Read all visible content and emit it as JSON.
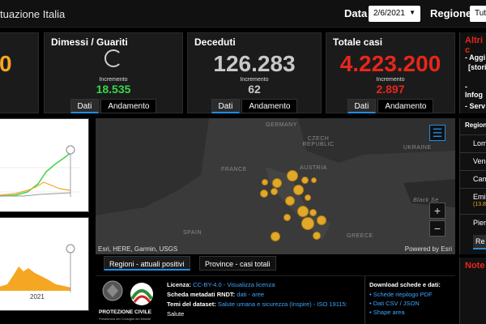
{
  "header": {
    "title": "tuazione Italia",
    "data_label": "Data",
    "date_value": "2/6/2021",
    "regione_label": "Regione",
    "regione_value": "Tutt"
  },
  "cards": {
    "first": {
      "value": "0"
    },
    "dimessi": {
      "title": "Dimessi / Guariti",
      "incremento_label": "Incremento",
      "incremento": "18.535"
    },
    "deceduti": {
      "title": "Deceduti",
      "value": "126.283",
      "incremento_label": "Incremento",
      "incremento": "62",
      "tab_dati": "Dati",
      "tab_andamento": "Andamento"
    },
    "totale": {
      "title": "Totale casi",
      "value": "4.223.200",
      "incremento_label": "Incremento",
      "incremento": "2.897",
      "tab_dati": "Dati",
      "tab_andamento": "Andamento"
    },
    "dimessi_tabs": {
      "tab_dati": "Dati",
      "tab_andamento": "Andamento"
    }
  },
  "left_chart": {
    "xlabel": "2021"
  },
  "map": {
    "labels": [
      "GERMANY",
      "CZECH REPUBLIC",
      "FRANCE",
      "AUSTRIA",
      "UKRAINE",
      "SPAIN",
      "GREECE",
      "Black Se"
    ],
    "attribution": "Esri, HERE, Garmin, USGS",
    "powered": "Powered by Esri",
    "tab_regioni": "Regioni - attuali positivi",
    "tab_province": "Province - casi totali",
    "zoom_in": "+",
    "zoom_out": "−"
  },
  "footer": {
    "licenza_label": "Licenza:",
    "licenza_value": "CC-BY-4.0 - Visualizza licenza",
    "scheda_label": "Scheda metadati RNDT:",
    "scheda_value": "dati - aree",
    "temi_label": "Temi del dataset:",
    "temi_value": "Salute umana e sicurezza (Inspire) - ISO 19115:",
    "temi_cont": "Salute",
    "download_title": "Download schede e dati:",
    "links": [
      "Schede riepilogo PDF",
      "Dati CSV / JSON",
      "Shape area"
    ],
    "logo_text": "PROTEZIONE CIVILE",
    "logo_sub": "Presidenza del Consiglio dei Ministri"
  },
  "right": {
    "altri_title": "Altri c",
    "items": [
      "- Aggi",
      "[stori",
      "- Infog",
      "- Serv"
    ],
    "regioni_title": "Regioni",
    "regioni": [
      "Lom",
      "Vene",
      "Cam",
      "Emi",
      "Pier"
    ],
    "emi_sub": "(13.8",
    "btn": "Re",
    "note_title": "Note"
  },
  "colors": {
    "accent": "#1e8ee6",
    "green": "#39d648",
    "red": "#e8261a",
    "orange": "#f5a623",
    "grey": "#c8c8c8"
  }
}
